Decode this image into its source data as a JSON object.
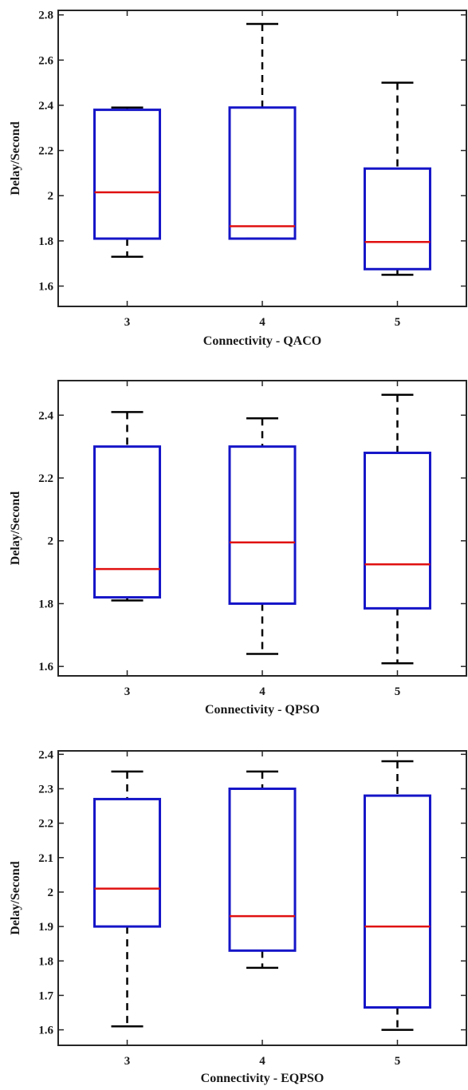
{
  "colors": {
    "box": "#1515c8",
    "median": "#e01010",
    "whisker": "#000000",
    "axis": "#262626"
  },
  "chart_data": [
    {
      "type": "box",
      "xlabel": "Connectivity - QACO",
      "ylabel": "Delay/Second",
      "categories": [
        "3",
        "4",
        "5"
      ],
      "ylim": [
        1.51,
        2.82
      ],
      "yticks": [
        1.6,
        1.8,
        2.0,
        2.2,
        2.4,
        2.6,
        2.8
      ],
      "ytick_labels": [
        "1.6",
        "1.8",
        "2",
        "2.2",
        "2.4",
        "2.6",
        "2.8"
      ],
      "grid": false,
      "boxes": [
        {
          "min": 1.73,
          "q1": 1.81,
          "median": 2.015,
          "q3": 2.38,
          "max": 2.39
        },
        {
          "min": 1.81,
          "q1": 1.81,
          "median": 1.865,
          "q3": 2.39,
          "max": 2.76
        },
        {
          "min": 1.65,
          "q1": 1.675,
          "median": 1.795,
          "q3": 2.12,
          "max": 2.5
        }
      ]
    },
    {
      "type": "box",
      "xlabel": "Connectivity - QPSO",
      "ylabel": "Delay/Second",
      "categories": [
        "3",
        "4",
        "5"
      ],
      "ylim": [
        1.57,
        2.51
      ],
      "yticks": [
        1.6,
        1.8,
        2.0,
        2.2,
        2.4
      ],
      "ytick_labels": [
        "1.6",
        "1.8",
        "2",
        "2.2",
        "2.4"
      ],
      "grid": false,
      "boxes": [
        {
          "min": 1.81,
          "q1": 1.82,
          "median": 1.91,
          "q3": 2.3,
          "max": 2.41
        },
        {
          "min": 1.64,
          "q1": 1.8,
          "median": 1.995,
          "q3": 2.3,
          "max": 2.39
        },
        {
          "min": 1.61,
          "q1": 1.785,
          "median": 1.925,
          "q3": 2.28,
          "max": 2.465
        }
      ]
    },
    {
      "type": "box",
      "xlabel": "Connectivity - EQPSO",
      "ylabel": "Delay/Second",
      "categories": [
        "3",
        "4",
        "5"
      ],
      "ylim": [
        1.555,
        2.41
      ],
      "yticks": [
        1.6,
        1.7,
        1.8,
        1.9,
        2.0,
        2.1,
        2.2,
        2.3,
        2.4
      ],
      "ytick_labels": [
        "1.6",
        "1.7",
        "1.8",
        "1.9",
        "2",
        "2.1",
        "2.2",
        "2.3",
        "2.4"
      ],
      "grid": false,
      "boxes": [
        {
          "min": 1.61,
          "q1": 1.9,
          "median": 2.01,
          "q3": 2.27,
          "max": 2.35
        },
        {
          "min": 1.78,
          "q1": 1.83,
          "median": 1.93,
          "q3": 2.3,
          "max": 2.35
        },
        {
          "min": 1.6,
          "q1": 1.665,
          "median": 1.9,
          "q3": 2.28,
          "max": 2.38
        }
      ]
    }
  ]
}
